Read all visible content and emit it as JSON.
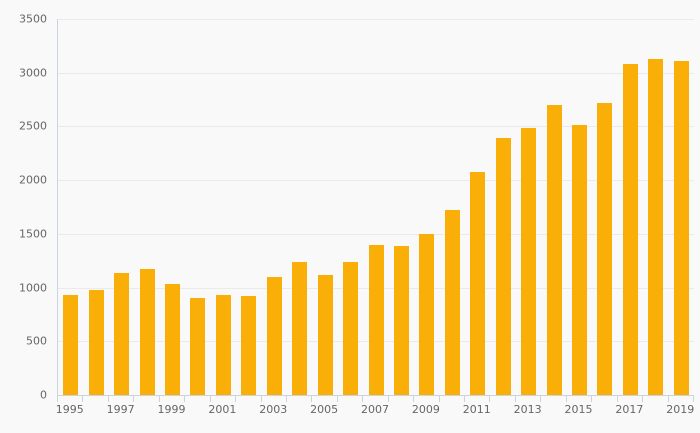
{
  "chart": {
    "background_color": "#f9f9f9",
    "bar_color": "#F9AE08",
    "gridline_color": "#eaeaea",
    "axis_color": "#ccd3e0",
    "label_color": "#666666"
  },
  "chart_data": {
    "type": "bar",
    "title": "",
    "xlabel": "",
    "ylabel": "",
    "categories": [
      1995,
      1996,
      1997,
      1998,
      1999,
      2000,
      2001,
      2002,
      2003,
      2004,
      2005,
      2006,
      2007,
      2008,
      2009,
      2010,
      2011,
      2012,
      2013,
      2014,
      2015,
      2016,
      2017,
      2018,
      2019
    ],
    "values": [
      930,
      975,
      1135,
      1170,
      1030,
      900,
      935,
      925,
      1100,
      1240,
      1115,
      1235,
      1400,
      1390,
      1500,
      1725,
      2080,
      2395,
      2485,
      2700,
      2515,
      2720,
      3080,
      3125,
      3110
    ],
    "x_tick_labels": [
      "1995",
      "1997",
      "1999",
      "2001",
      "2003",
      "2005",
      "2007",
      "2009",
      "2011",
      "2013",
      "2015",
      "2017",
      "2019"
    ],
    "x_label_every": 2,
    "y_ticks": [
      0,
      500,
      1000,
      1500,
      2000,
      2500,
      3000,
      3500
    ],
    "ylim": [
      0,
      3500
    ],
    "grid": "horizontal",
    "legend": "none"
  }
}
